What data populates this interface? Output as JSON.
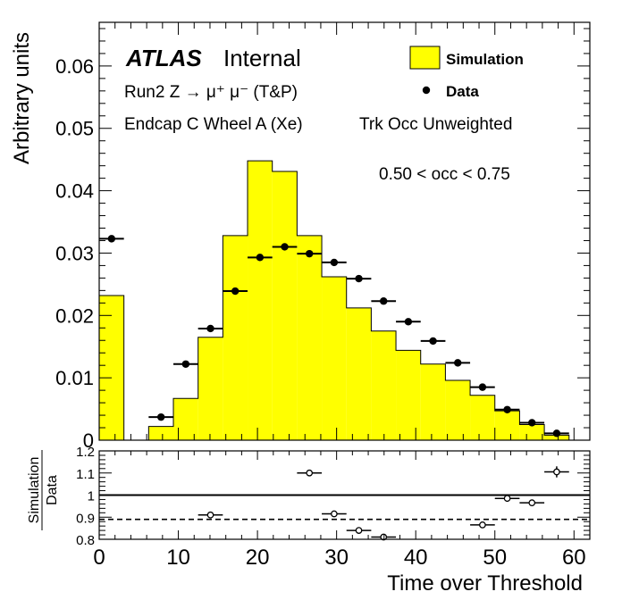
{
  "chart_data": [
    {
      "type": "histogram",
      "panel": "main",
      "ylabel": "Arbitrary units",
      "xlim": [
        0,
        62
      ],
      "ylim": [
        0,
        0.067
      ],
      "yticks": [
        "0",
        "0.01",
        "0.02",
        "0.03",
        "0.04",
        "0.05",
        "0.06"
      ],
      "xticks": [
        "0",
        "10",
        "20",
        "30",
        "40",
        "50",
        "60"
      ],
      "annotations": {
        "atlas": "ATLAS",
        "internal": "Internal",
        "process": "Run2 Z → μ⁺ μ⁻ (T&P)",
        "region": "Endcap C Wheel A (Xe)",
        "weighting": "Trk Occ Unweighted",
        "occ_range": "0.50 < occ < 0.75"
      },
      "legend": {
        "position": "top-right",
        "entries": [
          {
            "label": "Simulation",
            "style": "filled-box",
            "color": "#ffff00"
          },
          {
            "label": "Data",
            "style": "marker",
            "color": "#000000"
          }
        ]
      },
      "series": [
        {
          "name": "Simulation",
          "kind": "step-filled",
          "color": "#ffff00",
          "bin_edges": [
            0,
            3.125,
            6.25,
            9.375,
            12.5,
            15.625,
            18.75,
            21.875,
            25,
            28.125,
            31.25,
            34.375,
            37.5,
            40.625,
            43.75,
            46.875,
            50,
            53.125,
            56.25,
            59.375
          ],
          "values": [
            0.0232,
            0.0,
            0.0022,
            0.0067,
            0.0165,
            0.0328,
            0.0448,
            0.0431,
            0.0328,
            0.0262,
            0.0212,
            0.0175,
            0.0144,
            0.0122,
            0.0096,
            0.0072,
            0.0047,
            0.0025,
            0.0008
          ]
        },
        {
          "name": "Data",
          "kind": "points",
          "color": "#000000",
          "x": [
            1.5625,
            7.8125,
            10.9375,
            14.0625,
            17.1875,
            20.3125,
            23.4375,
            26.5625,
            29.6875,
            32.8125,
            35.9375,
            39.0625,
            42.1875,
            45.3125,
            48.4375,
            51.5625,
            54.6875,
            57.8125
          ],
          "y": [
            0.0323,
            0.0037,
            0.0122,
            0.0179,
            0.0239,
            0.0293,
            0.031,
            0.0299,
            0.0285,
            0.0259,
            0.0223,
            0.019,
            0.0159,
            0.0124,
            0.0085,
            0.0049,
            0.0028,
            0.0011
          ]
        }
      ]
    },
    {
      "type": "scatter",
      "panel": "ratio",
      "ylabel_num": "Simulation",
      "ylabel_den": "Data",
      "xlabel": "Time over Threshold",
      "xlim": [
        0,
        62
      ],
      "ylim": [
        0.8,
        1.2
      ],
      "yticks": [
        "0.8",
        "0.9",
        "1",
        "1.1",
        "1.2"
      ],
      "xticks": [
        "0",
        "10",
        "20",
        "30",
        "40",
        "50",
        "60"
      ],
      "reference_lines": [
        {
          "y": 1.0,
          "style": "solid"
        },
        {
          "y": 0.89,
          "style": "dashed"
        }
      ],
      "series": [
        {
          "name": "Simulation/Data",
          "kind": "open-points",
          "x": [
            14.0625,
            26.5625,
            29.6875,
            32.8125,
            35.9375,
            48.4375,
            51.5625,
            54.6875,
            57.8125
          ],
          "y": [
            0.91,
            1.1,
            0.915,
            0.84,
            0.81,
            0.865,
            0.985,
            0.965,
            1.105
          ],
          "yerr": [
            0.0,
            0.0,
            0.0,
            0.0,
            0.0,
            0.0,
            0.0,
            0.0,
            0.025
          ]
        }
      ]
    }
  ]
}
